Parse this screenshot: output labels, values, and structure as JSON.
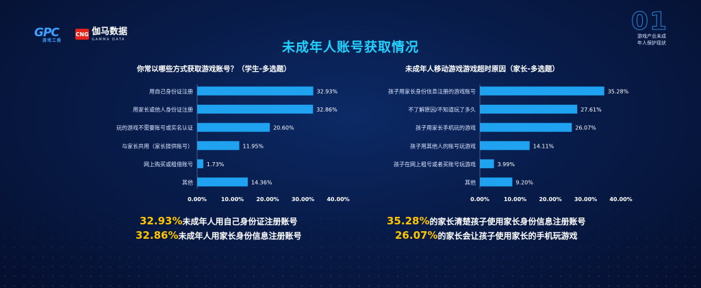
{
  "header": {
    "logo_gpc": "GPC",
    "logo_gpc_sub": "游戏工委",
    "logo_cng": "CNG",
    "logo_gamma_cn": "伽马数据",
    "logo_gamma_en": "GAMMA DATA",
    "corner_number": "01",
    "corner_caption_1": "游戏产业未成",
    "corner_caption_2": "年人保护现状"
  },
  "title": "未成年人账号获取情况",
  "colors": {
    "bar": "#1fa2f0",
    "title": "#24d2ff",
    "highlight": "#ffc600"
  },
  "chart_data": [
    {
      "type": "bar",
      "orientation": "horizontal",
      "title": "你常以哪些方式获取游戏账号？（学生-多选题）",
      "categories": [
        "用自己身份证注册",
        "用家长或他人身份证注册",
        "玩的游戏不需要账号或实名认证",
        "与家长共用（家长提供账号）",
        "网上购买或租借账号",
        "其他"
      ],
      "values": [
        32.93,
        32.86,
        20.6,
        11.95,
        1.73,
        14.36
      ],
      "value_labels": [
        "32.93%",
        "32.86%",
        "20.60%",
        "11.95%",
        "1.73%",
        "14.36%"
      ],
      "xlim": [
        0,
        40
      ],
      "x_ticks": [
        "0.00%",
        "10.00%",
        "20.00%",
        "30.00%",
        "40.00%"
      ],
      "grid": false
    },
    {
      "type": "bar",
      "orientation": "horizontal",
      "title": "未成年人移动游戏游戏超时原因（家长-多选题）",
      "categories": [
        "孩子用家长身份信息注册的游戏账号",
        "不了解原因/不知道玩了多久",
        "孩子用家长手机玩的游戏",
        "孩子用其他人的账号玩游戏",
        "孩子在网上租号或者买账号玩游戏",
        "其他"
      ],
      "values": [
        35.28,
        27.61,
        26.07,
        14.11,
        3.99,
        9.2
      ],
      "value_labels": [
        "35.28%",
        "27.61%",
        "26.07%",
        "14.11%",
        "3.99%",
        "9.20%"
      ],
      "xlim": [
        0,
        40
      ],
      "x_ticks": [
        "0.00%",
        "10.00%",
        "20.00%",
        "30.00%",
        "40.00%"
      ],
      "grid": false
    }
  ],
  "highlights": {
    "left": [
      {
        "pct": "32.93%",
        "text": "未成年人用自己身份证注册账号"
      },
      {
        "pct": "32.86%",
        "text": "未成年人用家长身份信息注册账号"
      }
    ],
    "right": [
      {
        "pct": "35.28%",
        "text": "的家长清楚孩子使用家长身份信息注册账号"
      },
      {
        "pct": "26.07%",
        "text": "的家长会让孩子使用家长的手机玩游戏"
      }
    ]
  }
}
